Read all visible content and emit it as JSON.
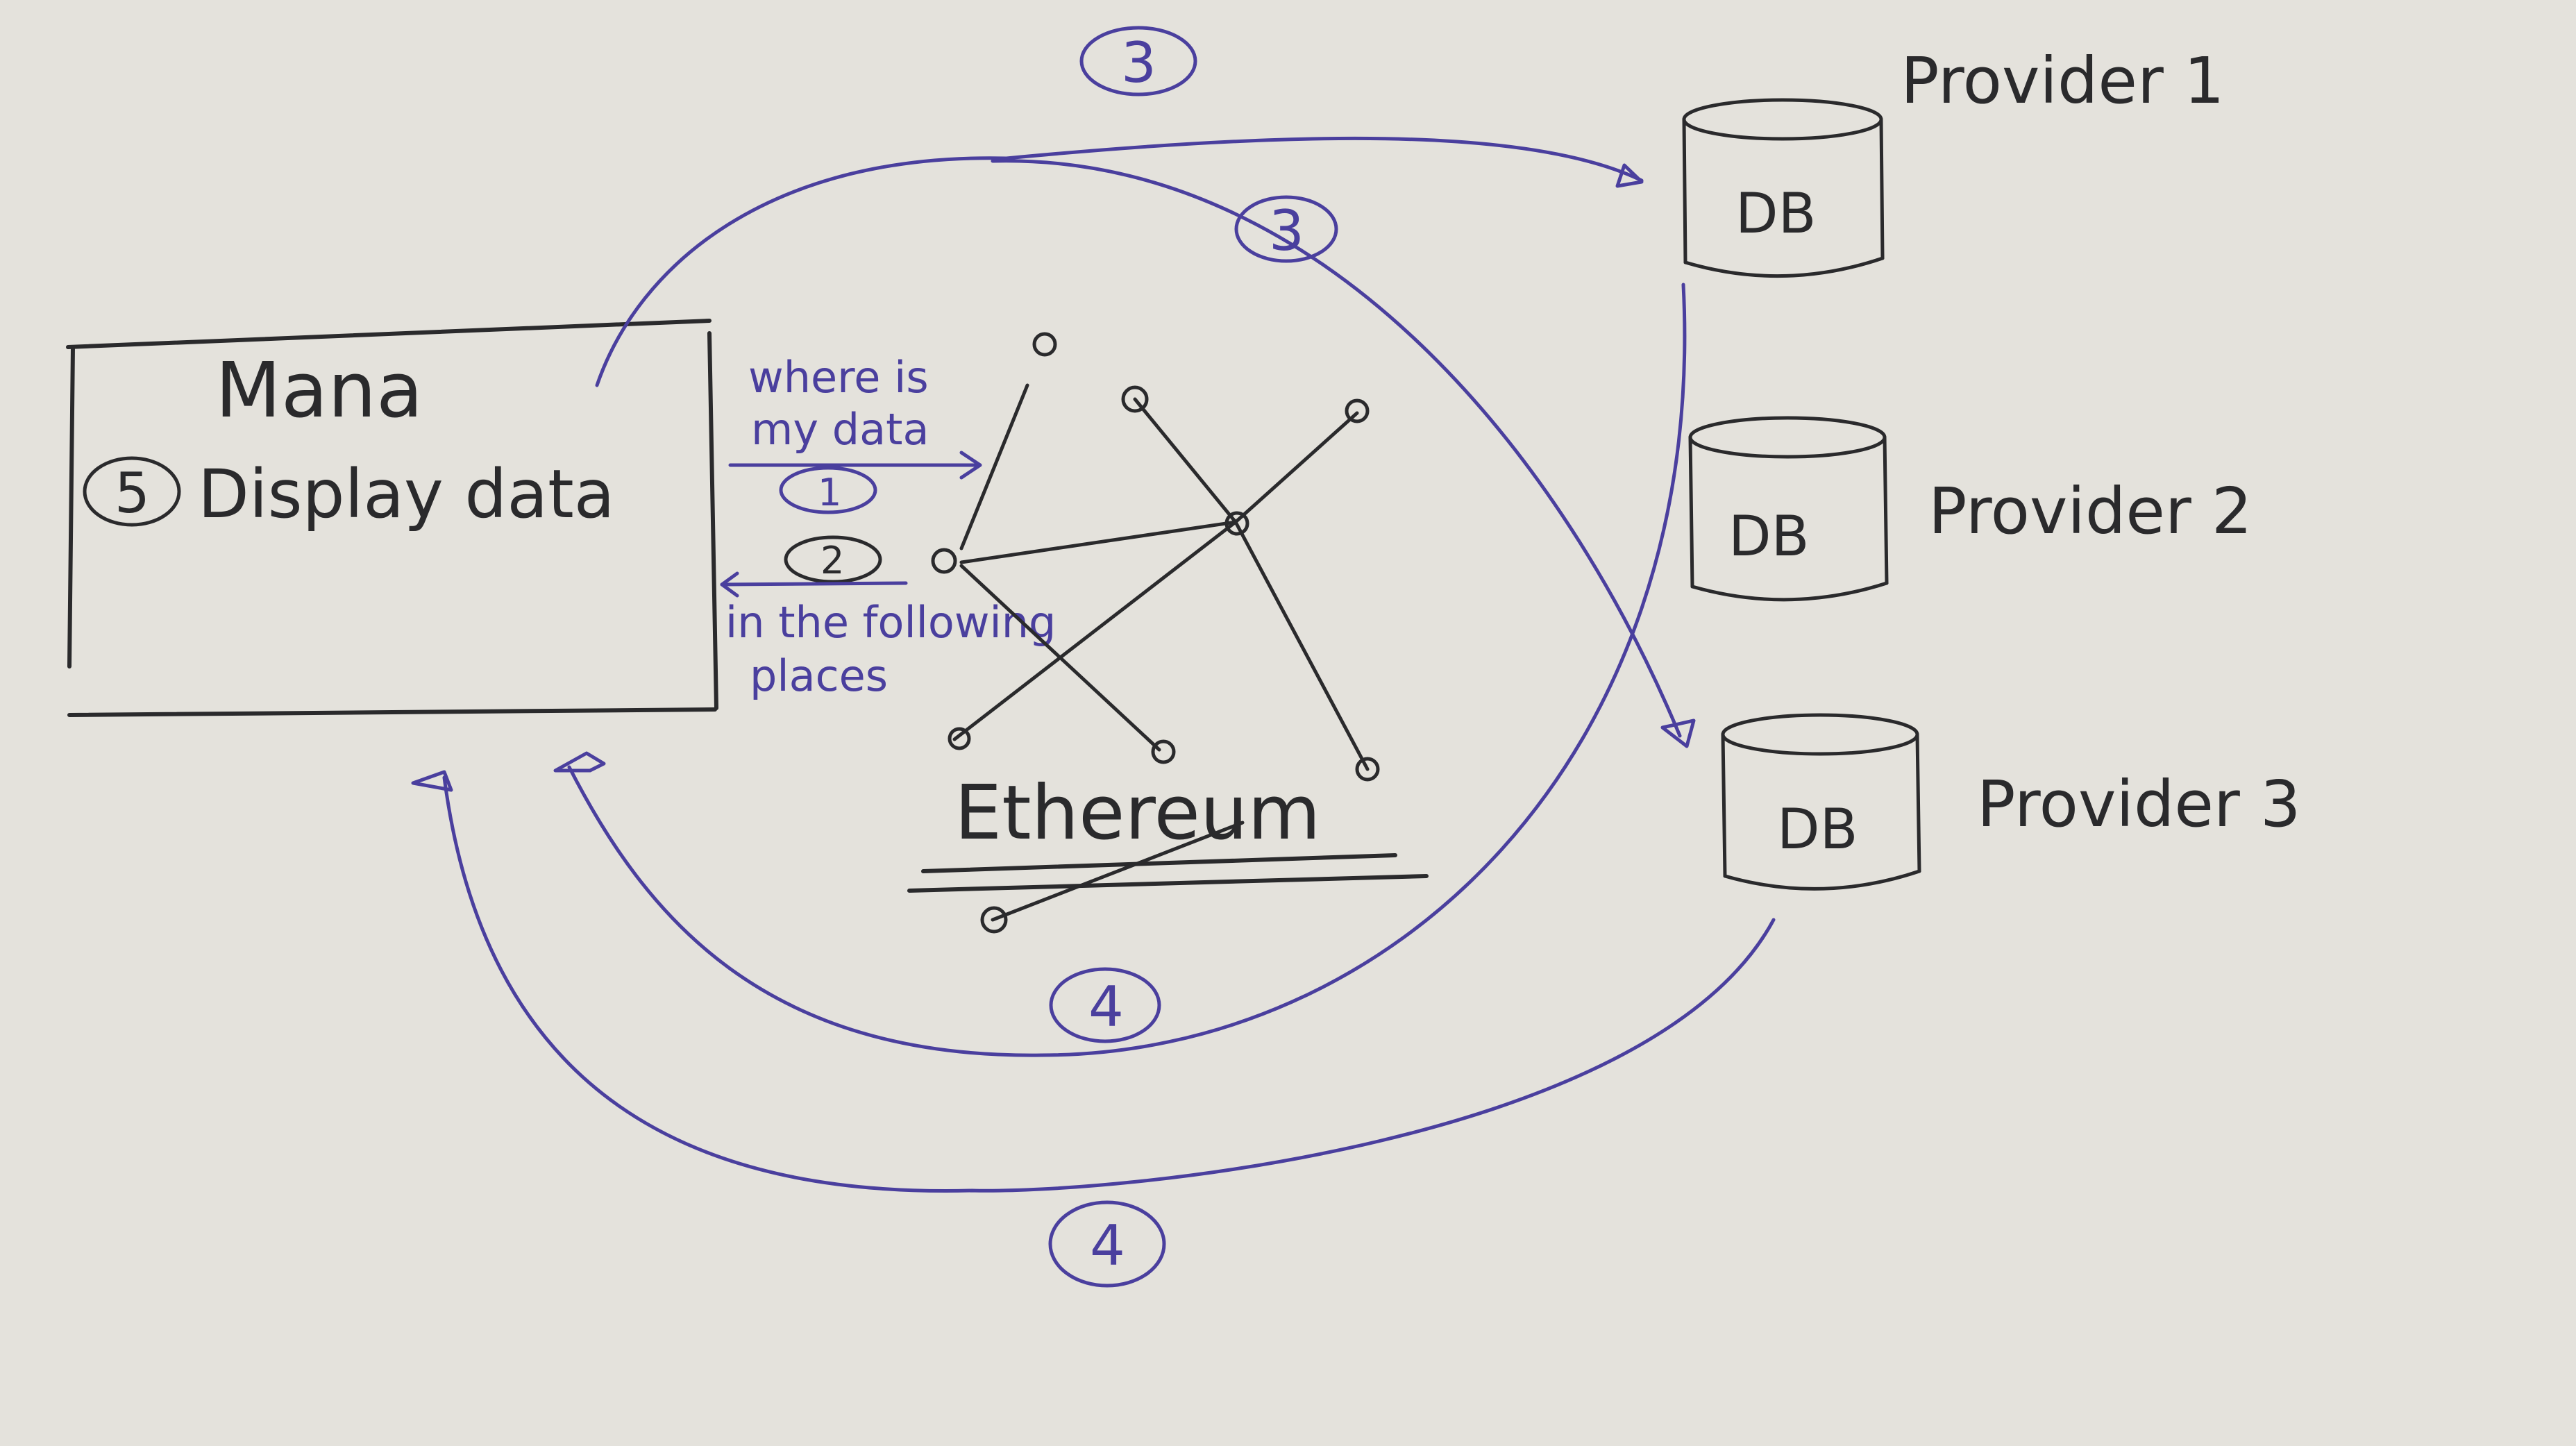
{
  "manager_box": {
    "title": "Mana",
    "display_step": "5",
    "display_label": "Display data"
  },
  "query": {
    "step": "1",
    "label_line1": "where is",
    "label_line2": "my data"
  },
  "response": {
    "step": "2",
    "label_line1": "in the following",
    "label_line2": "places"
  },
  "network": {
    "label": "Ethereum"
  },
  "providers": [
    {
      "name": "Provider 1",
      "db_label": "DB"
    },
    {
      "name": "Provider 2",
      "db_label": "DB"
    },
    {
      "name": "Provider 3",
      "db_label": "DB"
    }
  ],
  "steps": {
    "fetch_provider1": "3",
    "fetch_provider3": "3",
    "return_provider1": "4",
    "return_provider3": "4"
  },
  "colors": {
    "paper": "#e4e2dc",
    "black_ink": "#2a2a2c",
    "blue_ink": "#4a3f9e"
  }
}
